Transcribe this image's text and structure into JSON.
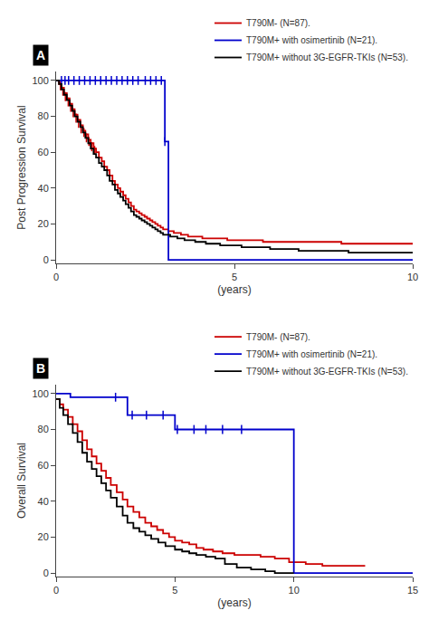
{
  "chart_data": [
    {
      "type": "step",
      "title": "A",
      "ylabel": "Post Progression Survival",
      "xlabel": "(years)",
      "xlim": [
        0,
        10
      ],
      "ylim": [
        -2,
        105
      ],
      "xticks": [
        0,
        5,
        10
      ],
      "yticks": [
        0,
        20,
        40,
        60,
        80,
        100
      ],
      "grid": false,
      "legend": "upper right",
      "series": [
        {
          "name": "T790M- (N=87).",
          "color": "#cc0000",
          "x": [
            0,
            0.08,
            0.15,
            0.22,
            0.3,
            0.38,
            0.45,
            0.52,
            0.6,
            0.68,
            0.75,
            0.82,
            0.9,
            0.97,
            1.05,
            1.12,
            1.2,
            1.28,
            1.35,
            1.43,
            1.5,
            1.58,
            1.65,
            1.73,
            1.8,
            1.88,
            1.95,
            2.03,
            2.1,
            2.18,
            2.25,
            2.33,
            2.4,
            2.48,
            2.55,
            2.63,
            2.7,
            2.78,
            2.85,
            2.93,
            3.0,
            3.15,
            3.3,
            3.5,
            3.7,
            3.9,
            4.1,
            4.4,
            4.8,
            5.2,
            5.8,
            6.5,
            7.2,
            8.0,
            8.8,
            9.5,
            10.0
          ],
          "values": [
            100,
            98,
            96,
            93,
            90,
            87,
            84,
            81,
            78,
            75,
            72,
            70,
            67,
            65,
            62,
            60,
            57,
            55,
            52,
            50,
            47,
            44,
            42,
            40,
            38,
            36,
            34,
            32,
            30,
            28,
            27,
            26,
            25,
            24,
            23,
            22,
            21,
            20,
            19,
            18,
            17,
            16,
            15,
            14,
            13,
            13,
            12,
            12,
            11,
            11,
            10,
            10,
            10,
            9,
            9,
            9,
            9
          ],
          "censor_x": [
            0.12,
            0.19,
            0.26,
            0.34,
            0.41,
            0.48,
            0.56,
            0.63,
            0.7,
            0.78,
            0.85,
            0.92,
            1.0,
            1.08
          ],
          "censor_y": [
            97,
            94,
            91,
            88,
            85,
            82,
            79,
            76,
            73,
            71,
            68,
            66,
            63,
            61
          ]
        },
        {
          "name": "T790M+ with osimertinib (N=21).",
          "color": "#0000cc",
          "x": [
            0,
            0.1,
            0.2,
            0.4,
            0.6,
            0.8,
            1.0,
            1.2,
            1.4,
            1.6,
            1.8,
            2.0,
            2.2,
            2.4,
            2.6,
            2.8,
            3.0,
            3.05,
            3.1,
            3.15,
            3.3,
            10.0
          ],
          "values": [
            100,
            100,
            100,
            100,
            100,
            100,
            100,
            100,
            100,
            100,
            100,
            100,
            100,
            100,
            100,
            100,
            100,
            66,
            66,
            0,
            0,
            0
          ],
          "censor_x": [
            0.15,
            0.25,
            0.35,
            0.5,
            0.65,
            0.8,
            0.95,
            1.1,
            1.25,
            1.4,
            1.55,
            1.7,
            1.85,
            2.0,
            2.15,
            2.3,
            2.5,
            2.65,
            2.8,
            2.95,
            3.05
          ],
          "censor_y": [
            100,
            100,
            100,
            100,
            100,
            100,
            100,
            100,
            100,
            100,
            100,
            100,
            100,
            100,
            100,
            100,
            100,
            100,
            100,
            100,
            66
          ]
        },
        {
          "name": "T790M+ without 3G-EGFR-TKIs (N=53).",
          "color": "#000000",
          "x": [
            0,
            0.08,
            0.15,
            0.22,
            0.3,
            0.38,
            0.45,
            0.52,
            0.6,
            0.68,
            0.75,
            0.82,
            0.9,
            0.97,
            1.05,
            1.12,
            1.2,
            1.28,
            1.35,
            1.43,
            1.5,
            1.58,
            1.65,
            1.73,
            1.8,
            1.88,
            1.95,
            2.03,
            2.1,
            2.18,
            2.25,
            2.33,
            2.4,
            2.48,
            2.55,
            2.63,
            2.7,
            2.78,
            2.85,
            2.93,
            3.0,
            3.2,
            3.4,
            3.6,
            3.9,
            4.2,
            4.6,
            5.2,
            6.0,
            6.8,
            7.5,
            8.2,
            9.0,
            10.0
          ],
          "values": [
            100,
            98,
            95,
            92,
            89,
            86,
            83,
            80,
            77,
            74,
            71,
            68,
            65,
            62,
            59,
            57,
            54,
            52,
            50,
            47,
            44,
            42,
            39,
            37,
            35,
            33,
            31,
            29,
            27,
            25,
            24,
            23,
            22,
            21,
            20,
            19,
            18,
            17,
            16,
            15,
            14,
            13,
            12,
            11,
            10,
            9,
            8,
            7,
            6,
            5,
            5,
            4,
            4,
            4
          ]
        }
      ]
    },
    {
      "type": "step",
      "title": "B",
      "ylabel": "Overall Survival",
      "xlabel": "(years)",
      "xlim": [
        0,
        15
      ],
      "ylim": [
        -2,
        105
      ],
      "xticks": [
        0,
        5,
        10,
        15
      ],
      "yticks": [
        0,
        20,
        40,
        60,
        80,
        100
      ],
      "grid": false,
      "legend": "upper right",
      "series": [
        {
          "name": "T790M- (N=87).",
          "color": "#cc0000",
          "x": [
            0,
            0.15,
            0.3,
            0.5,
            0.7,
            0.9,
            1.1,
            1.3,
            1.5,
            1.7,
            1.9,
            2.1,
            2.3,
            2.55,
            2.8,
            3.0,
            3.25,
            3.5,
            3.75,
            4.0,
            4.25,
            4.5,
            4.75,
            5.0,
            5.3,
            5.6,
            5.9,
            6.2,
            6.6,
            7.0,
            7.5,
            8.0,
            8.6,
            9.2,
            9.8,
            10.5,
            11.2,
            12.0,
            13.0
          ],
          "values": [
            97,
            94,
            91,
            87,
            83,
            79,
            74,
            69,
            65,
            61,
            57,
            53,
            49,
            45,
            41,
            37,
            34,
            31,
            28,
            26,
            24,
            22,
            20,
            18,
            17,
            16,
            14,
            13,
            12,
            11,
            10,
            10,
            9,
            8,
            6,
            5,
            4,
            4,
            4
          ]
        },
        {
          "name": "T790M+ with osimertinib (N=21).",
          "color": "#0000cc",
          "x": [
            0,
            0.2,
            0.4,
            0.6,
            0.8,
            1.0,
            1.2,
            1.5,
            1.8,
            2.1,
            2.5,
            3.0,
            3.5,
            4.0,
            4.5,
            5.0,
            5.5,
            6.0,
            6.5,
            7.0,
            7.5,
            8.0,
            8.5,
            9.0,
            9.5,
            9.8,
            10.0,
            15.0
          ],
          "values": [
            100,
            100,
            100,
            98,
            98,
            98,
            98,
            98,
            98,
            98,
            98,
            88,
            88,
            88,
            88,
            80,
            80,
            80,
            80,
            80,
            80,
            80,
            80,
            80,
            80,
            80,
            0,
            0
          ],
          "censor_x": [
            2.5,
            3.2,
            3.8,
            4.5,
            5.1,
            5.8,
            6.3,
            7.0,
            7.8
          ],
          "censor_y": [
            98,
            88,
            88,
            88,
            80,
            80,
            80,
            80,
            80
          ]
        },
        {
          "name": "T790M+ without 3G-EGFR-TKIs (N=53).",
          "color": "#000000",
          "x": [
            0,
            0.15,
            0.3,
            0.5,
            0.7,
            0.9,
            1.1,
            1.3,
            1.5,
            1.7,
            1.9,
            2.1,
            2.3,
            2.55,
            2.8,
            3.0,
            3.25,
            3.5,
            3.75,
            4.0,
            4.3,
            4.6,
            5.0,
            5.3,
            5.6,
            5.9,
            6.3,
            6.7,
            7.1,
            7.6,
            8.2,
            8.8,
            9.2,
            10.0
          ],
          "values": [
            97,
            92,
            88,
            83,
            78,
            73,
            67,
            62,
            58,
            54,
            50,
            46,
            42,
            37,
            32,
            28,
            25,
            23,
            21,
            19,
            17,
            15,
            13,
            12,
            11,
            10,
            9,
            8,
            5,
            3,
            2,
            1,
            0,
            0
          ]
        }
      ]
    }
  ]
}
